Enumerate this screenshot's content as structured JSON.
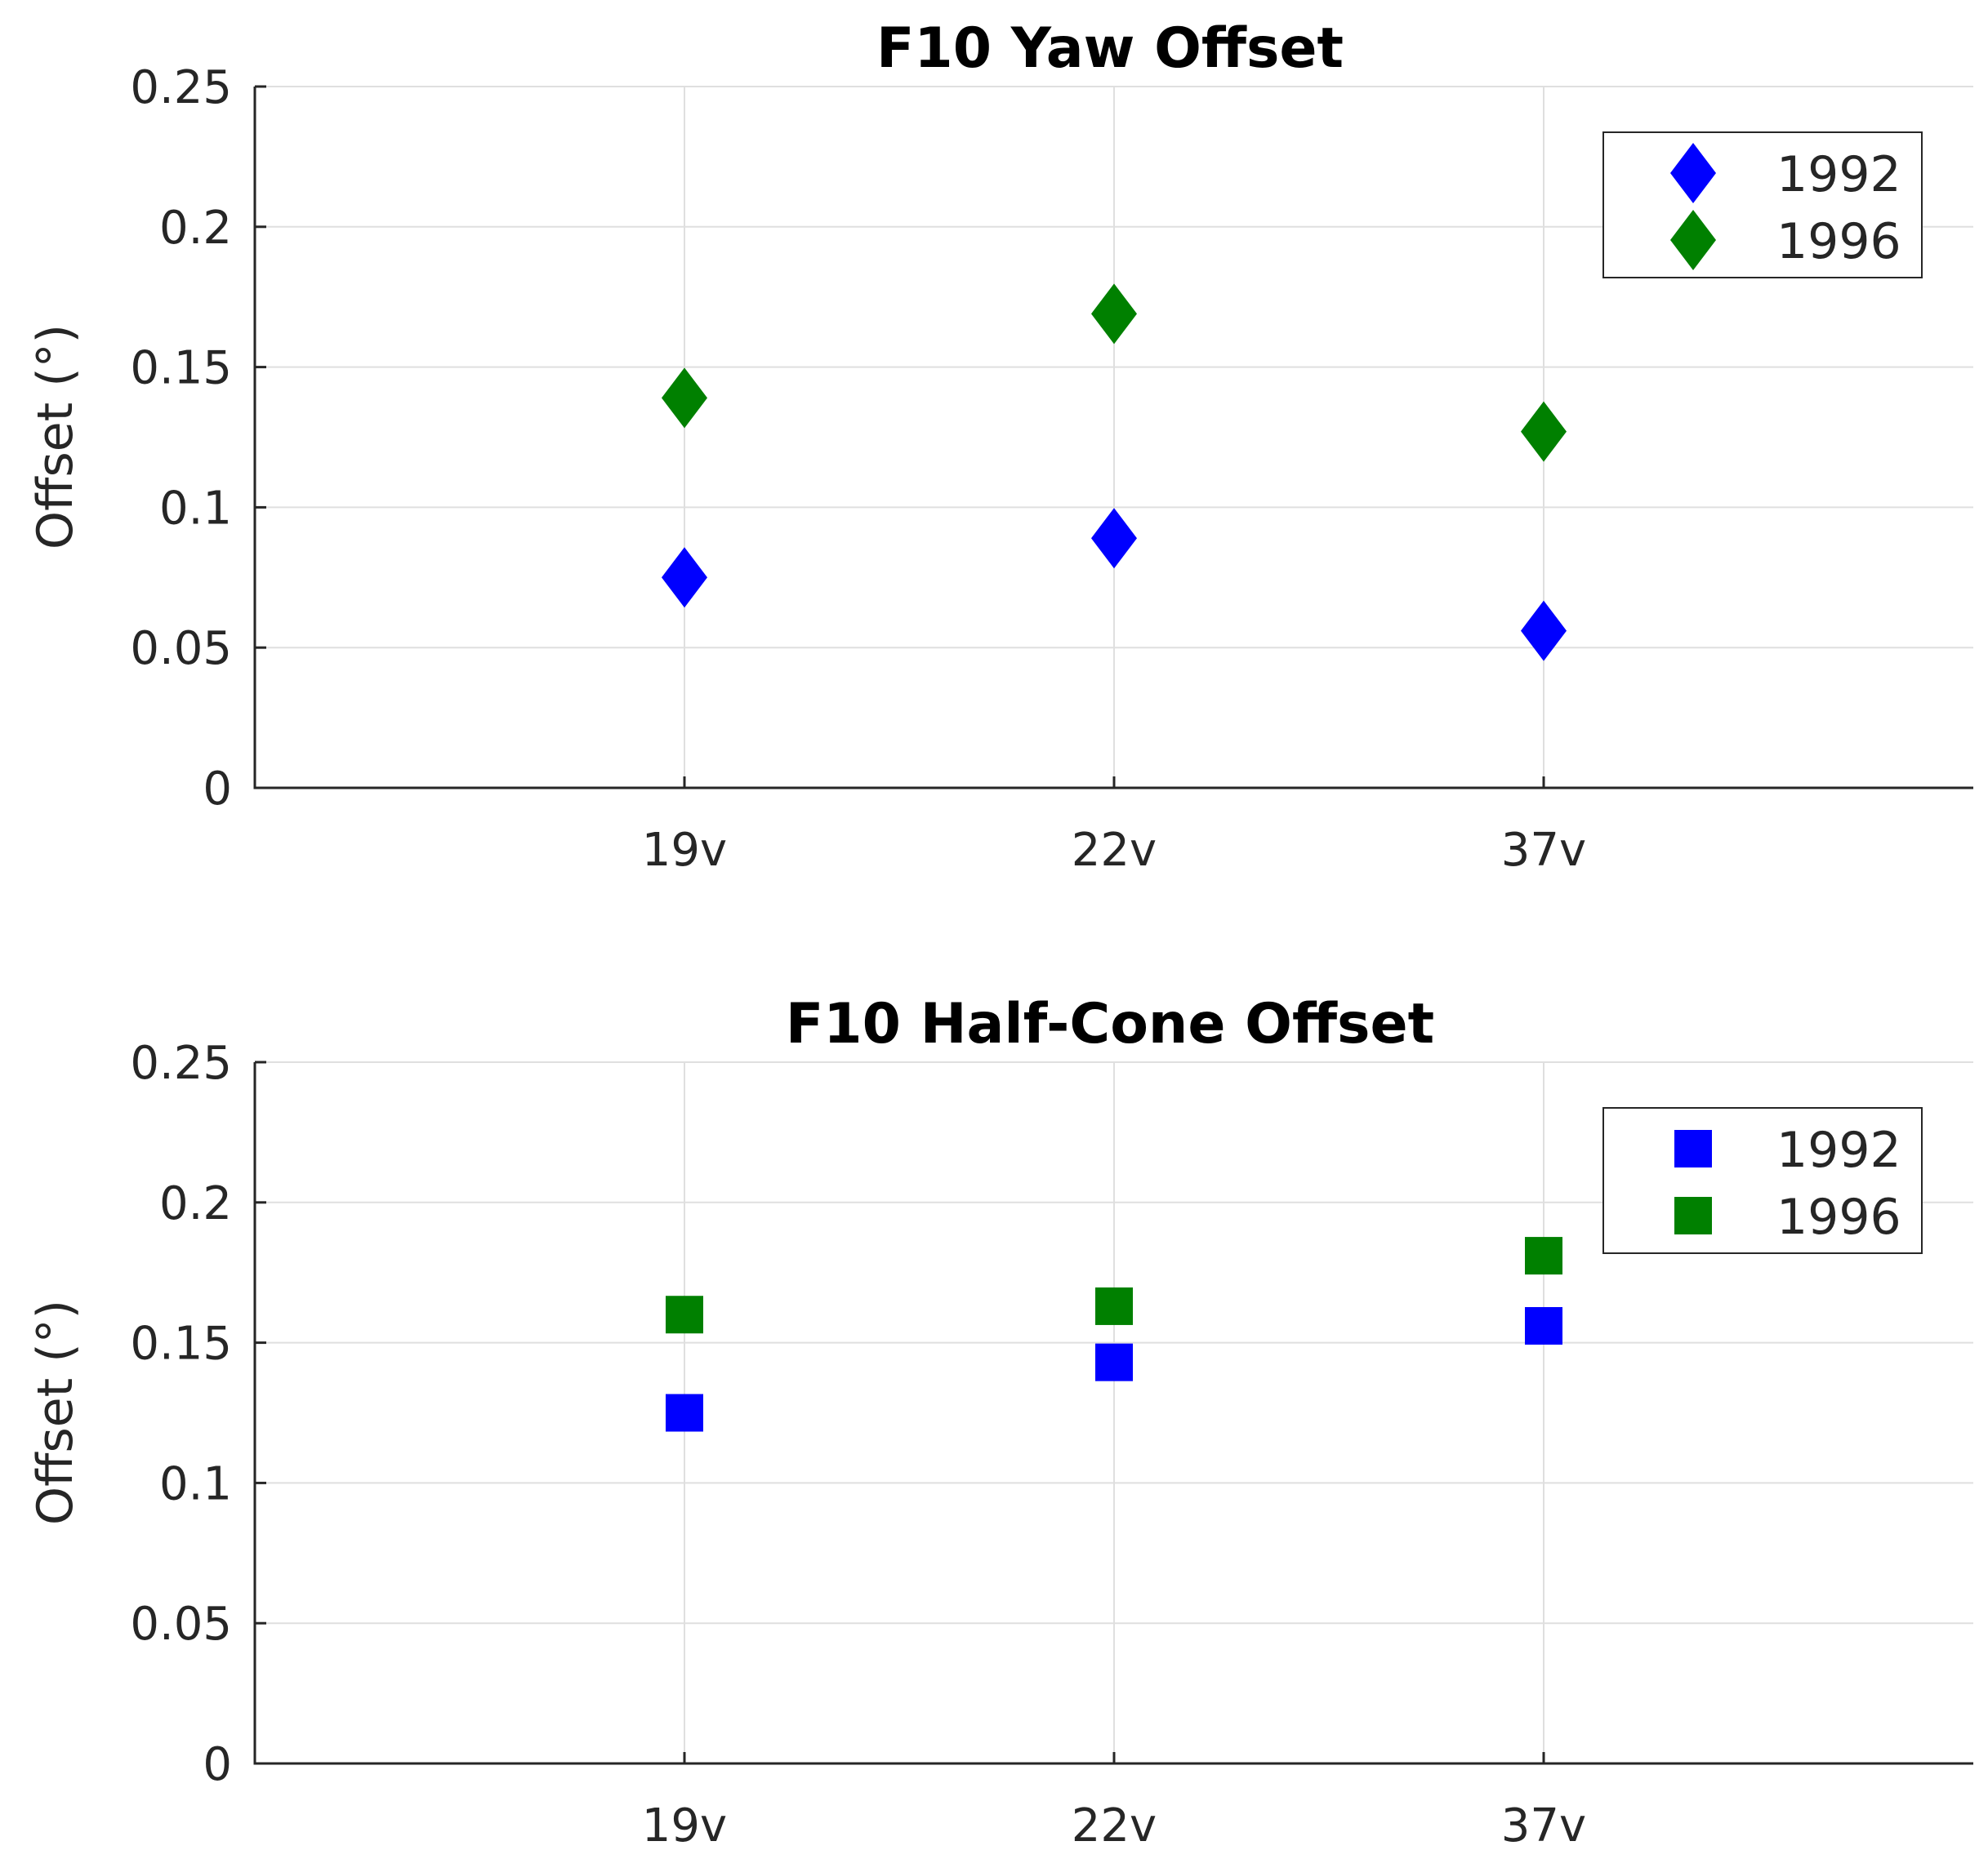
{
  "chart_data": [
    {
      "type": "scatter",
      "title": "F10 Yaw Offset",
      "marker": "diamond",
      "categories": [
        "19v",
        "22v",
        "37v"
      ],
      "xlabel": "",
      "ylabel": "Offset (°)",
      "ylim": [
        0,
        0.25
      ],
      "yticks": [
        0,
        0.05,
        0.1,
        0.15,
        0.2,
        0.25
      ],
      "ytick_labels": [
        "0",
        "0.05",
        "0.1",
        "0.15",
        "0.2",
        "0.25"
      ],
      "grid": true,
      "legend_position": "top-right",
      "series": [
        {
          "name": "1992",
          "color": "#0000ff",
          "values": [
            0.075,
            0.089,
            0.056
          ]
        },
        {
          "name": "1996",
          "color": "#008000",
          "values": [
            0.139,
            0.169,
            0.127
          ]
        }
      ]
    },
    {
      "type": "scatter",
      "title": "F10 Half-Cone Offset",
      "marker": "square",
      "categories": [
        "19v",
        "22v",
        "37v"
      ],
      "xlabel": "",
      "ylabel": "Offset (°)",
      "ylim": [
        0,
        0.25
      ],
      "yticks": [
        0,
        0.05,
        0.1,
        0.15,
        0.2,
        0.25
      ],
      "ytick_labels": [
        "0",
        "0.05",
        "0.1",
        "0.15",
        "0.2",
        "0.25"
      ],
      "grid": true,
      "legend_position": "top-right",
      "series": [
        {
          "name": "1992",
          "color": "#0000ff",
          "values": [
            0.125,
            0.143,
            0.156
          ]
        },
        {
          "name": "1996",
          "color": "#008000",
          "values": [
            0.16,
            0.163,
            0.181
          ]
        }
      ]
    }
  ]
}
